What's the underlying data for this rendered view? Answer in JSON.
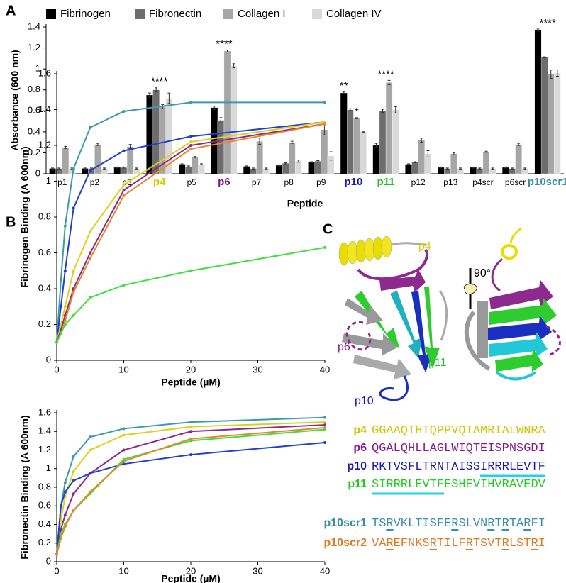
{
  "chart_data": [
    {
      "type": "bar",
      "panel": "A",
      "xlabel": "Peptide",
      "ylabel": "Absorbance (600 nm)",
      "categories": [
        "p1",
        "p2",
        "p3",
        "p4",
        "p5",
        "p6",
        "p7",
        "p8",
        "p9",
        "p10",
        "p11",
        "p12",
        "p13",
        "p4scr",
        "p6scr",
        "p10scr1"
      ],
      "category_colors": [
        "#000000",
        "#000000",
        "#000000",
        "#d6cc00",
        "#000000",
        "#7f1a86",
        "#000000",
        "#000000",
        "#000000",
        "#1a1ab4",
        "#22c022",
        "#000000",
        "#000000",
        "#000000",
        "#000000",
        "#3a8fa8"
      ],
      "series": [
        {
          "name": "Fibrinogen",
          "color": "#000000",
          "values": [
            0.05,
            0.05,
            0.06,
            0.75,
            0.09,
            0.63,
            0.07,
            0.08,
            0.11,
            0.77,
            0.27,
            0.09,
            0.06,
            0.06,
            0.06,
            1.37
          ],
          "errors": [
            0.005,
            0.005,
            0.005,
            0.02,
            0.005,
            0.015,
            0.005,
            0.005,
            0.005,
            0.01,
            0.02,
            0.005,
            0.005,
            0.005,
            0.005,
            0.01
          ]
        },
        {
          "name": "Fibronectin",
          "color": "#6d6d6d",
          "values": [
            0.05,
            0.05,
            0.06,
            0.8,
            0.07,
            0.51,
            0.05,
            0.1,
            0.12,
            0.61,
            0.6,
            0.11,
            0.05,
            0.05,
            0.05,
            1.11
          ],
          "errors": [
            0.005,
            0.005,
            0.005,
            0.02,
            0.005,
            0.025,
            0.005,
            0.005,
            0.005,
            0.01,
            0.015,
            0.005,
            0.005,
            0.005,
            0.005,
            0.005
          ]
        },
        {
          "name": "Collagen I",
          "color": "#a6a6a6",
          "values": [
            0.25,
            0.28,
            0.26,
            0.64,
            0.16,
            1.17,
            0.31,
            0.3,
            0.42,
            0.53,
            0.87,
            0.32,
            0.19,
            0.21,
            0.28,
            0.95
          ],
          "errors": [
            0.01,
            0.01,
            0.02,
            0.02,
            0.005,
            0.01,
            0.03,
            0.01,
            0.05,
            0.005,
            0.02,
            0.02,
            0.01,
            0.005,
            0.01,
            0.04
          ]
        },
        {
          "name": "Collagen IV",
          "color": "#d9d9d9",
          "values": [
            0.05,
            0.05,
            0.05,
            0.72,
            0.09,
            1.03,
            0.05,
            0.12,
            0.17,
            0.4,
            0.61,
            0.19,
            0.05,
            0.05,
            0.05,
            0.96
          ],
          "errors": [
            0.005,
            0.005,
            0.005,
            0.05,
            0.005,
            0.02,
            0.005,
            0.01,
            0.04,
            0.005,
            0.03,
            0.03,
            0.005,
            0.005,
            0.005,
            0.03
          ]
        }
      ],
      "significance": [
        null,
        null,
        null,
        [
          "****"
        ],
        null,
        [
          "****"
        ],
        null,
        null,
        null,
        [
          "**",
          "*"
        ],
        [
          "****"
        ],
        null,
        null,
        null,
        null,
        [
          "****"
        ]
      ],
      "ylim": [
        0,
        1.4
      ],
      "yticks": [
        0,
        0.2,
        0.4,
        0.6,
        0.8,
        1,
        1.2,
        1.4
      ]
    },
    {
      "type": "line",
      "panel": "B",
      "xlabel": "Peptide (µM)",
      "ylabel": "Fibrinogen Binding (A 600nm)",
      "x": [
        0,
        0.625,
        1.25,
        2.5,
        5,
        10,
        20,
        40
      ],
      "series": [
        {
          "color": "#3a9aae",
          "values": [
            0.1,
            0.45,
            0.75,
            1.07,
            1.3,
            1.39,
            1.44,
            1.44
          ]
        },
        {
          "color": "#1f3fcf",
          "values": [
            0.1,
            0.3,
            0.5,
            0.85,
            1.06,
            1.17,
            1.25,
            1.33
          ]
        },
        {
          "color": "#dcd21a",
          "values": [
            0.1,
            0.2,
            0.3,
            0.5,
            0.72,
            0.98,
            1.22,
            1.33
          ]
        },
        {
          "color": "#8e2a8e",
          "values": [
            0.1,
            0.17,
            0.25,
            0.4,
            0.6,
            0.95,
            1.2,
            1.32
          ]
        },
        {
          "color": "#e8862a",
          "values": [
            0.1,
            0.15,
            0.22,
            0.38,
            0.57,
            0.92,
            1.18,
            1.32
          ]
        },
        {
          "color": "#3ee03e",
          "values": [
            0.1,
            0.15,
            0.2,
            0.25,
            0.35,
            0.42,
            0.5,
            0.63
          ]
        }
      ],
      "xlim": [
        0,
        40
      ],
      "xticks": [
        0,
        10,
        20,
        30,
        40
      ],
      "ylim": [
        0,
        1.6
      ],
      "yticks": [
        0,
        0.2,
        0.4,
        0.6,
        0.8,
        1,
        1.2,
        1.4,
        1.6
      ]
    },
    {
      "type": "line",
      "xlabel": "Peptide (µM)",
      "ylabel": "Fibronectin Binding (A 600nm)",
      "x": [
        0,
        0.625,
        1.25,
        2.5,
        5,
        10,
        20,
        40
      ],
      "series": [
        {
          "color": "#3a9aae",
          "values": [
            0.08,
            0.6,
            0.85,
            1.13,
            1.34,
            1.43,
            1.5,
            1.55
          ]
        },
        {
          "color": "#dcd21a",
          "values": [
            0.08,
            0.45,
            0.7,
            0.97,
            1.2,
            1.36,
            1.45,
            1.5
          ]
        },
        {
          "color": "#8e2a8e",
          "values": [
            0.08,
            0.35,
            0.5,
            0.73,
            0.95,
            1.2,
            1.4,
            1.47
          ]
        },
        {
          "color": "#1f3fcf",
          "values": [
            0.08,
            0.6,
            0.75,
            0.87,
            0.95,
            1.05,
            1.15,
            1.28
          ]
        },
        {
          "color": "#3ee03e",
          "values": [
            0.08,
            0.3,
            0.4,
            0.55,
            0.73,
            1.1,
            1.3,
            1.42
          ]
        },
        {
          "color": "#e8862a",
          "values": [
            0.08,
            0.25,
            0.38,
            0.55,
            0.75,
            1.08,
            1.32,
            1.44
          ]
        }
      ],
      "xlim": [
        0,
        40
      ],
      "xticks": [
        0,
        10,
        20,
        30,
        40
      ],
      "ylim": [
        0,
        1.6
      ],
      "yticks": [
        0,
        0.2,
        0.4,
        0.6,
        0.8,
        1,
        1.2,
        1.4,
        1.6
      ]
    }
  ],
  "panel_c": {
    "panel": "C",
    "structure_labels": [
      "p4",
      "90°",
      "p6",
      "p11",
      "p10"
    ],
    "sequences": [
      {
        "name": "p4",
        "color": "#cfc400",
        "parts": [
          {
            "text": "GGAAQTHTQPPVQTAMRIALWNRA"
          }
        ]
      },
      {
        "name": "p6",
        "color": "#8b1a89",
        "parts": [
          {
            "text": "QGALQHLLAGLWIQTEISPNSGDI"
          }
        ]
      },
      {
        "name": "p10",
        "color": "#1a1ab0",
        "underline_color": "#22d3e6",
        "parts": [
          {
            "text": "RKTVSFLTRNTAISS"
          },
          {
            "text": "IRRRLEVTF",
            "underline": true
          }
        ]
      },
      {
        "name": "p11",
        "color": "#22cc22",
        "underline_color": "#22d3e6",
        "parts": [
          {
            "text": "SIRRRLEVTF",
            "underline": true
          },
          {
            "text": "ESHEVIHVRAVEDV"
          }
        ]
      },
      {
        "name": "p10scr1",
        "color": "#3a8fa8",
        "underline_color": "#3a8fa8",
        "parts": [
          {
            "text": "TS"
          },
          {
            "text": "R",
            "underline": true
          },
          {
            "text": "VKLTISFE"
          },
          {
            "text": "R",
            "underline": true
          },
          {
            "text": "SLVN"
          },
          {
            "text": "R",
            "underline": true
          },
          {
            "text": "T"
          },
          {
            "text": "R",
            "underline": true
          },
          {
            "text": "TA"
          },
          {
            "text": "R",
            "underline": true
          },
          {
            "text": "FI"
          }
        ]
      },
      {
        "name": "p10scr2",
        "color": "#e07a20",
        "underline_color": "#e07a20",
        "parts": [
          {
            "text": "VA"
          },
          {
            "text": "R",
            "underline": true
          },
          {
            "text": "EFNKS"
          },
          {
            "text": "R",
            "underline": true
          },
          {
            "text": "TILF"
          },
          {
            "text": "R",
            "underline": true
          },
          {
            "text": "TSVT"
          },
          {
            "text": "R",
            "underline": true
          },
          {
            "text": "LST"
          },
          {
            "text": "R",
            "underline": true
          },
          {
            "text": "I"
          }
        ]
      }
    ]
  }
}
